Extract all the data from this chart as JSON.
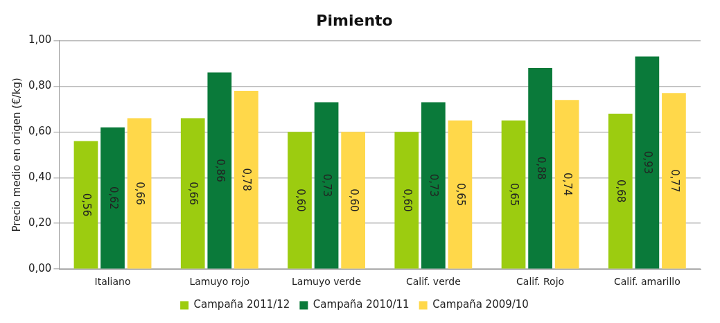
{
  "chart_data": {
    "type": "bar",
    "title": "Pimiento",
    "ylabel": "Precio medio en origen (€/kg)",
    "categories": [
      "Italiano",
      "Lamuyo rojo",
      "Lamuyo verde",
      "Calif. verde",
      "Calif. Rojo",
      "Calif. amarillo"
    ],
    "series": [
      {
        "name": "Campaña 2011/12",
        "color": "#9ccc10",
        "values": [
          0.56,
          0.66,
          0.6,
          0.6,
          0.65,
          0.68
        ],
        "value_labels": [
          "0,56",
          "0,66",
          "0,60",
          "0,60",
          "0,65",
          "0,68"
        ]
      },
      {
        "name": "Campaña 2010/11",
        "color": "#0a7a3a",
        "values": [
          0.62,
          0.86,
          0.73,
          0.73,
          0.88,
          0.93
        ],
        "value_labels": [
          "0,62",
          "0,86",
          "0,73",
          "0,73",
          "0,88",
          "0,93"
        ]
      },
      {
        "name": "Campaña 2009/10",
        "color": "#ffd84a",
        "values": [
          0.66,
          0.78,
          0.6,
          0.65,
          0.74,
          0.77
        ],
        "value_labels": [
          "0,66",
          "0,78",
          "0,60",
          "0,65",
          "0,74",
          "0,77"
        ]
      }
    ],
    "ylim": [
      0,
      1
    ],
    "yticks": [
      {
        "value": 0,
        "label": "0,00"
      },
      {
        "value": 0.2,
        "label": "0,20"
      },
      {
        "value": 0.4,
        "label": "0,40"
      },
      {
        "value": 0.6,
        "label": "0,60"
      },
      {
        "value": 0.8,
        "label": "0,80"
      },
      {
        "value": 1,
        "label": "1,00"
      }
    ],
    "grid": "y",
    "legend": "bottom"
  }
}
